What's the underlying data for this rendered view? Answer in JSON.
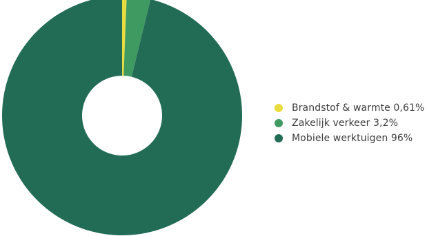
{
  "chart_data": {
    "type": "pie",
    "title": "",
    "donut": true,
    "categories": [
      "Brandstof & warmte",
      "Zakelijk verkeer",
      "Mobiele werktuigen"
    ],
    "values": [
      0.61,
      3.2,
      96
    ],
    "colors": [
      "#e8dc3f",
      "#3f9a62",
      "#226c56"
    ],
    "legend_position": "right",
    "legend": [
      {
        "label": "Brandstof & warmte 0,61%",
        "color": "#e8dc3f"
      },
      {
        "label": "Zakelijk verkeer 3,2%",
        "color": "#3f9a62"
      },
      {
        "label": "Mobiele werktuigen 96%",
        "color": "#226c56"
      }
    ]
  }
}
